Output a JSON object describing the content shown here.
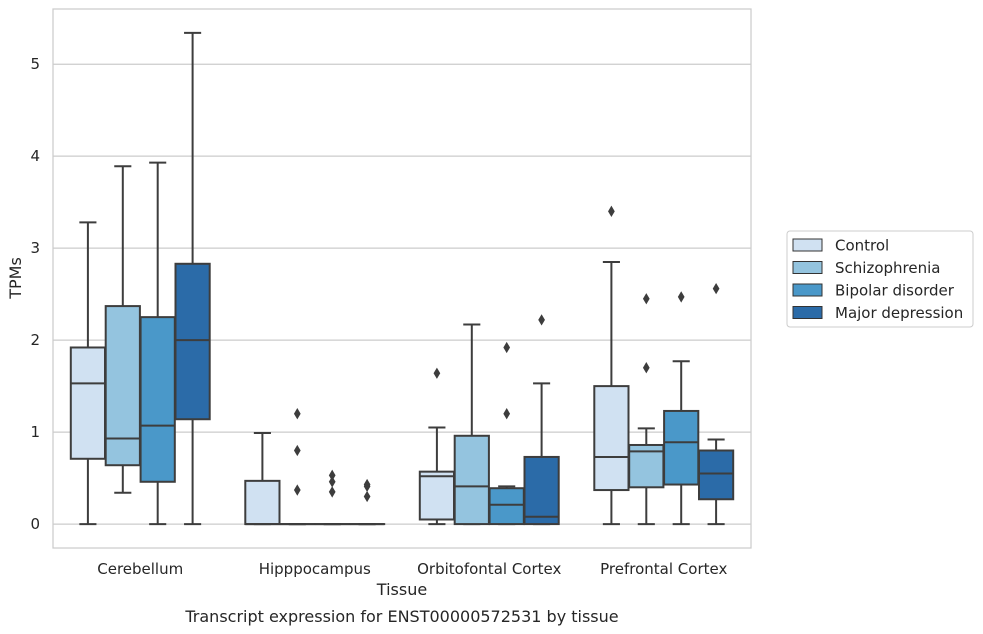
{
  "chart_data": {
    "type": "boxplot",
    "caption": "Transcript expression for ENST00000572531 by tissue",
    "xlabel": "Tissue",
    "ylabel": "TPMs",
    "ylim": [
      -0.26,
      5.6
    ],
    "yticks": [
      0,
      1,
      2,
      3,
      4,
      5
    ],
    "grid": true,
    "legend_position": "right",
    "categories": [
      "Cerebellum",
      "Hipppocampus",
      "Orbitofontal Cortex",
      "Prefrontal Cortex"
    ],
    "series": [
      {
        "name": "Control",
        "color": "#d0e1f2",
        "boxes": [
          {
            "whislo": 0.0,
            "q1": 0.71,
            "med": 1.53,
            "q3": 1.92,
            "whishi": 3.28,
            "fliers": []
          },
          {
            "whislo": 0.0,
            "q1": 0.0,
            "med": 0.0,
            "q3": 0.47,
            "whishi": 0.99,
            "fliers": []
          },
          {
            "whislo": 0.0,
            "q1": 0.05,
            "med": 0.52,
            "q3": 0.57,
            "whishi": 1.05,
            "fliers": [
              1.64
            ]
          },
          {
            "whislo": 0.0,
            "q1": 0.37,
            "med": 0.73,
            "q3": 1.5,
            "whishi": 2.85,
            "fliers": [
              3.4
            ]
          }
        ]
      },
      {
        "name": "Schizophrenia",
        "color": "#94c4df",
        "boxes": [
          {
            "whislo": 0.34,
            "q1": 0.64,
            "med": 0.93,
            "q3": 2.37,
            "whishi": 3.89,
            "fliers": []
          },
          {
            "whislo": 0.0,
            "q1": 0.0,
            "med": 0.0,
            "q3": 0.0,
            "whishi": 0.0,
            "fliers": [
              1.2,
              0.8,
              0.37
            ]
          },
          {
            "whislo": 0.0,
            "q1": 0.0,
            "med": 0.41,
            "q3": 0.96,
            "whishi": 2.17,
            "fliers": []
          },
          {
            "whislo": 0.0,
            "q1": 0.4,
            "med": 0.79,
            "q3": 0.86,
            "whishi": 1.04,
            "fliers": [
              2.45,
              1.7
            ]
          }
        ]
      },
      {
        "name": "Bipolar disorder",
        "color": "#4a98c9",
        "boxes": [
          {
            "whislo": 0.0,
            "q1": 0.46,
            "med": 1.07,
            "q3": 2.25,
            "whishi": 3.93,
            "fliers": []
          },
          {
            "whislo": 0.0,
            "q1": 0.0,
            "med": 0.0,
            "q3": 0.0,
            "whishi": 0.0,
            "fliers": [
              0.53,
              0.46,
              0.35
            ]
          },
          {
            "whislo": 0.0,
            "q1": 0.0,
            "med": 0.21,
            "q3": 0.39,
            "whishi": 0.41,
            "fliers": [
              1.92,
              1.2
            ]
          },
          {
            "whislo": 0.0,
            "q1": 0.43,
            "med": 0.89,
            "q3": 1.23,
            "whishi": 1.77,
            "fliers": [
              2.47
            ]
          }
        ]
      },
      {
        "name": "Major depression",
        "color": "#2b6ba8",
        "boxes": [
          {
            "whislo": 0.0,
            "q1": 1.14,
            "med": 2.0,
            "q3": 2.83,
            "whishi": 5.34,
            "fliers": []
          },
          {
            "whislo": 0.0,
            "q1": 0.0,
            "med": 0.0,
            "q3": 0.0,
            "whishi": 0.0,
            "fliers": [
              0.43,
              0.41,
              0.3
            ]
          },
          {
            "whislo": 0.0,
            "q1": 0.0,
            "med": 0.08,
            "q3": 0.73,
            "whishi": 1.53,
            "fliers": [
              2.22
            ]
          },
          {
            "whislo": 0.0,
            "q1": 0.27,
            "med": 0.55,
            "q3": 0.8,
            "whishi": 0.92,
            "fliers": [
              2.56
            ]
          }
        ]
      }
    ]
  }
}
